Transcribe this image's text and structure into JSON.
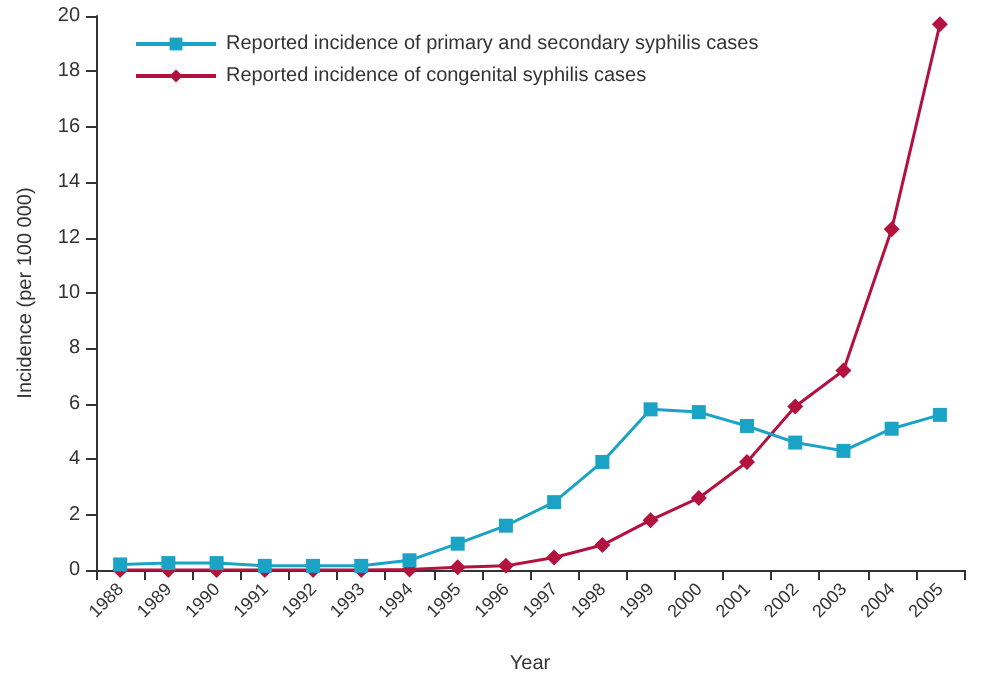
{
  "chart_data": {
    "type": "line",
    "xlabel": "Year",
    "ylabel": "Incidence (per 100 000)",
    "categories": [
      "1988",
      "1989",
      "1990",
      "1991",
      "1992",
      "1993",
      "1994",
      "1995",
      "1996",
      "1997",
      "1998",
      "1999",
      "2000",
      "2001",
      "2002",
      "2003",
      "2004",
      "2005"
    ],
    "series": [
      {
        "name": "Reported incidence of primary and secondary syphilis cases",
        "color": "#1ba3c6",
        "marker": "square",
        "values": [
          0.2,
          0.25,
          0.25,
          0.15,
          0.15,
          0.15,
          0.35,
          0.95,
          1.6,
          2.45,
          3.9,
          5.8,
          5.7,
          5.2,
          4.6,
          4.3,
          5.1,
          5.6
        ]
      },
      {
        "name": "Reported incidence of congenital syphilis cases",
        "color": "#b3123f",
        "marker": "diamond",
        "values": [
          0,
          0,
          0,
          0,
          0,
          0,
          0.02,
          0.1,
          0.15,
          0.45,
          0.9,
          1.8,
          2.6,
          3.9,
          5.9,
          7.2,
          12.3,
          19.7
        ]
      }
    ],
    "ylim": [
      0,
      20
    ],
    "yticks": [
      0,
      2,
      4,
      6,
      8,
      10,
      12,
      14,
      16,
      18,
      20
    ],
    "grid": false,
    "legend": "top left",
    "line_style": "solid"
  }
}
